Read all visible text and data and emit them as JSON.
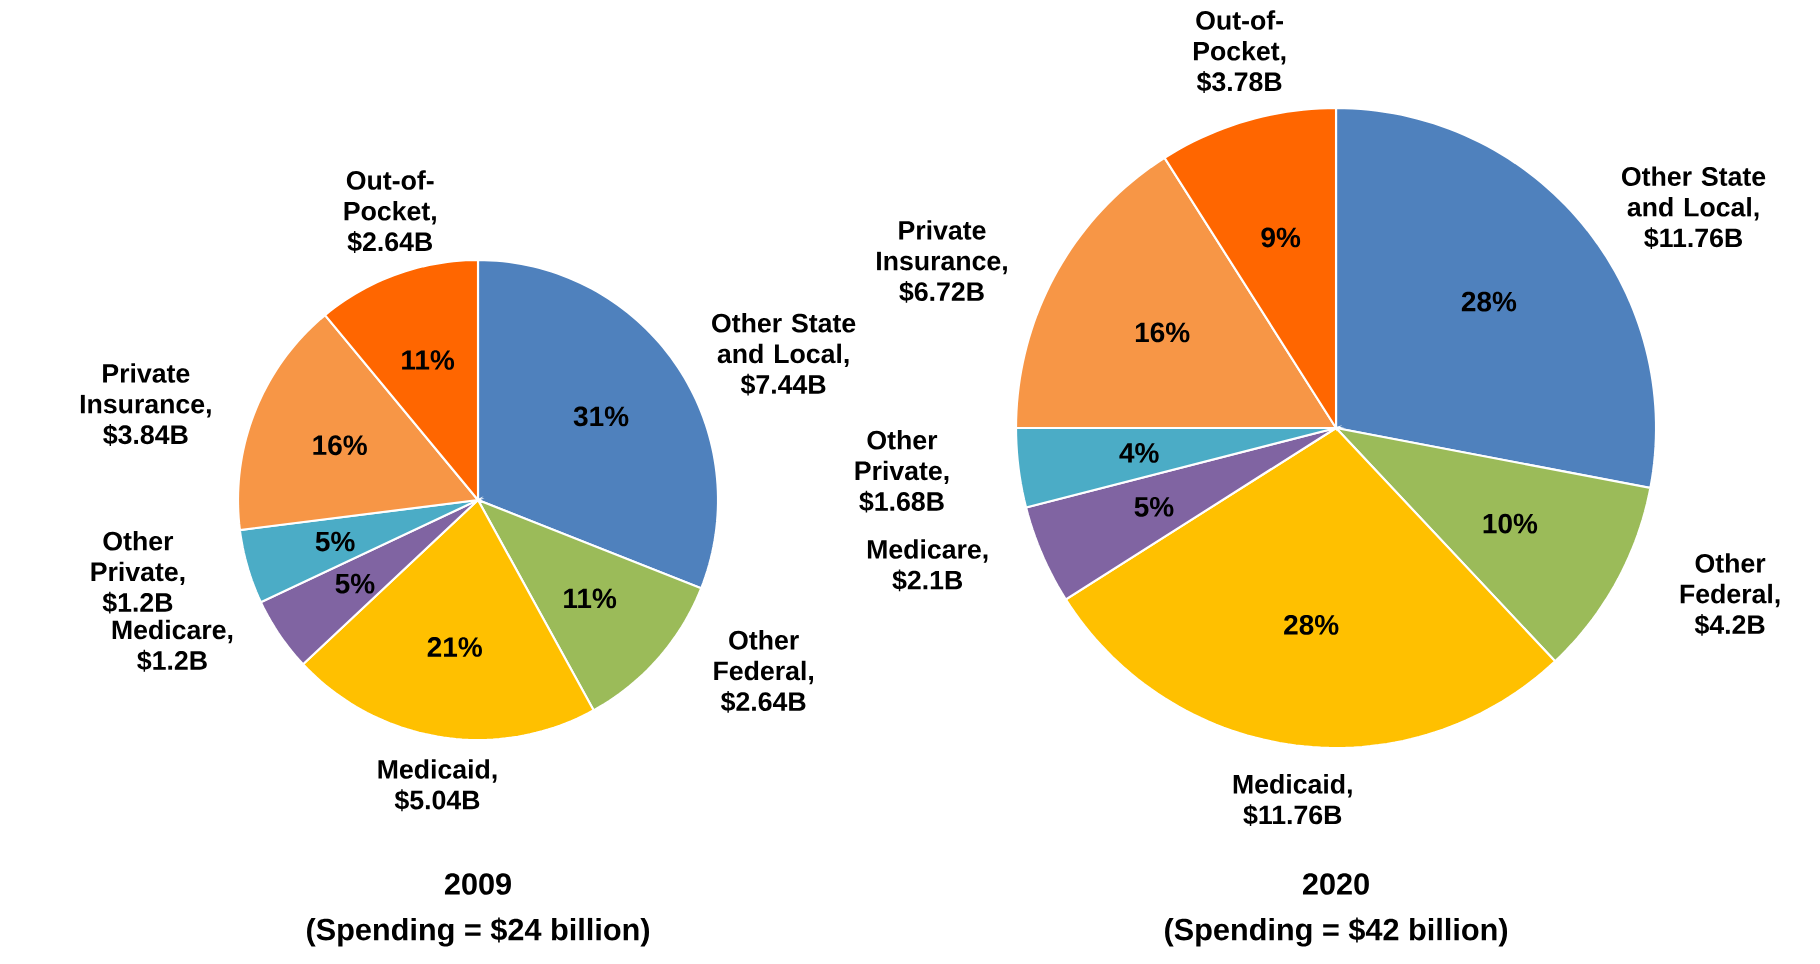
{
  "chart_data": [
    {
      "type": "pie",
      "title": "2009",
      "subtitle": "(Spending = $24 billion)",
      "categories": [
        "Other State and Local, $7.44B",
        "Other Federal, $2.64B",
        "Medicaid, $5.04B",
        "Medicare, $1.2B",
        "Other Private, $1.2B",
        "Private Insurance, $3.84B",
        "Out-of-Pocket, $2.64B"
      ],
      "values": [
        31,
        11,
        21,
        5,
        5,
        16,
        11
      ],
      "value_labels": [
        "31%",
        "11%",
        "21%",
        "5%",
        "5%",
        "16%",
        "11%"
      ],
      "colors": [
        "#4f81bd",
        "#9bbb59",
        "#ffc000",
        "#8064a2",
        "#4bacc6",
        "#f79646",
        "#ff6600"
      ]
    },
    {
      "type": "pie",
      "title": "2020",
      "subtitle": "(Spending = $42 billion)",
      "categories": [
        "Other State and Local, $11.76B",
        "Other Federal, $4.2B",
        "Medicaid, $11.76B",
        "Medicare, $2.1B",
        "Other Private, $1.68B",
        "Private Insurance, $6.72B",
        "Out-of-Pocket, $3.78B"
      ],
      "values": [
        28,
        10,
        28,
        5,
        4,
        16,
        9
      ],
      "value_labels": [
        "28%",
        "10%",
        "28%",
        "5%",
        "4%",
        "16%",
        "9%"
      ],
      "colors": [
        "#4f81bd",
        "#9bbb59",
        "#ffc000",
        "#8064a2",
        "#4bacc6",
        "#f79646",
        "#ff6600"
      ]
    }
  ]
}
